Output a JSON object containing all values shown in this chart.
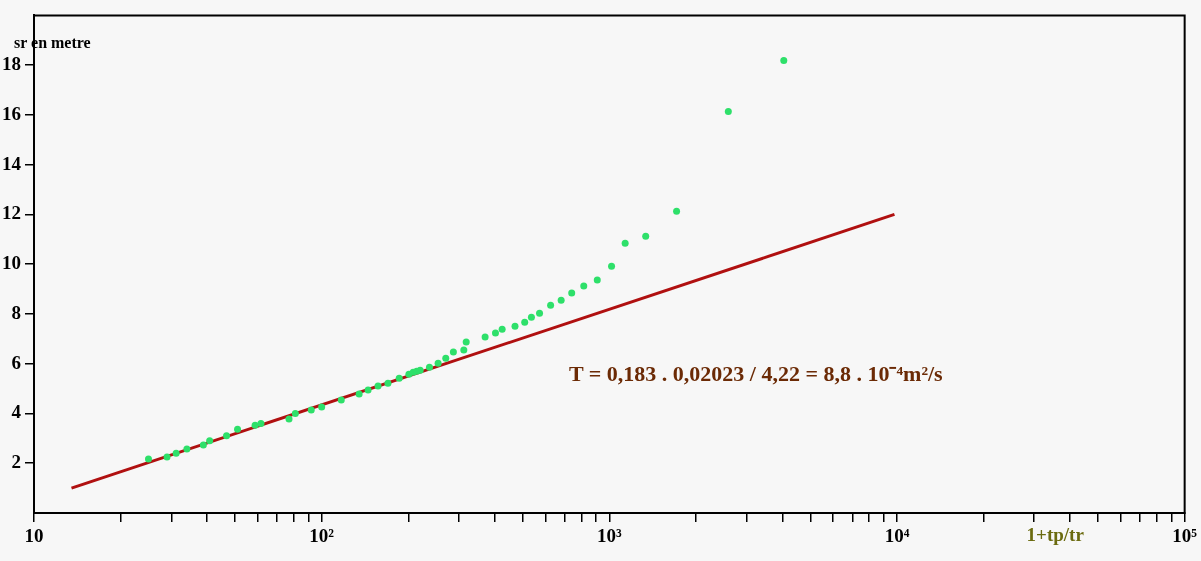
{
  "chart_data": {
    "type": "scatter",
    "xlabel": "1+tp/tr",
    "ylabel": "sr en metre",
    "annotations": [
      "T = 0,183 . 0,02023 / 4,22 = 8,8 . 10⁻⁴m²/s"
    ],
    "log": "x",
    "grid": false,
    "legend": false,
    "marker": "circle",
    "xlim": [
      10,
      100000
    ],
    "xticks": [
      10,
      {
        "value": 20,
        "label": null
      },
      {
        "value": 30,
        "label": null
      },
      {
        "value": 40,
        "label": null
      },
      {
        "value": 50,
        "label": null
      },
      {
        "value": 60,
        "label": null
      },
      {
        "value": 70,
        "label": null
      },
      {
        "value": 80,
        "label": null
      },
      {
        "value": 90,
        "label": null
      },
      {
        "value": 100,
        "label": "10²"
      },
      {
        "value": 200,
        "label": null
      },
      {
        "value": 300,
        "label": null
      },
      {
        "value": 400,
        "label": null
      },
      {
        "value": 500,
        "label": null
      },
      {
        "value": 600,
        "label": null
      },
      {
        "value": 700,
        "label": null
      },
      {
        "value": 800,
        "label": null
      },
      {
        "value": 900,
        "label": null
      },
      {
        "value": 1000,
        "label": "10³"
      },
      {
        "value": 2000,
        "label": null
      },
      {
        "value": 3000,
        "label": null
      },
      {
        "value": 4000,
        "label": null
      },
      {
        "value": 5000,
        "label": null
      },
      {
        "value": 6000,
        "label": null
      },
      {
        "value": 7000,
        "label": null
      },
      {
        "value": 8000,
        "label": null
      },
      {
        "value": 9000,
        "label": null
      },
      {
        "value": 10000,
        "label": "10⁴"
      },
      {
        "value": 20000,
        "label": null
      },
      {
        "value": 30000,
        "label": null
      },
      {
        "value": 40000,
        "label": null
      },
      {
        "value": 50000,
        "label": null
      },
      {
        "value": 60000,
        "label": null
      },
      {
        "value": 70000,
        "label": null
      },
      {
        "value": 80000,
        "label": null
      },
      {
        "value": 90000,
        "label": null
      },
      {
        "value": 100000,
        "label": "10⁵"
      }
    ],
    "ylim": [
      0,
      20
    ],
    "yticks": [
      2,
      4,
      6,
      8,
      10,
      12,
      14,
      16,
      18
    ],
    "series": [
      {
        "color": "#2ee06a",
        "x": [
          25,
          29,
          31.2,
          34,
          38.8,
          40.8,
          46.7,
          51,
          58.7,
          61.5,
          77,
          81,
          92,
          100,
          117,
          135,
          145,
          157,
          170,
          186,
          201,
          208,
          214,
          220,
          237,
          254,
          270,
          287,
          312,
          318,
          370,
          402,
          424,
          470,
          508,
          536,
          572,
          625,
          680,
          740,
          815,
          908,
          1018,
          1135,
          1338,
          1713,
          2592,
          4041
        ],
        "values": [
          2.17,
          2.25,
          2.4,
          2.57,
          2.73,
          2.9,
          3.1,
          3.37,
          3.53,
          3.6,
          3.78,
          4.0,
          4.14,
          4.26,
          4.54,
          4.78,
          4.94,
          5.1,
          5.22,
          5.42,
          5.58,
          5.66,
          5.7,
          5.74,
          5.86,
          6.02,
          6.22,
          6.47,
          6.55,
          6.87,
          7.07,
          7.23,
          7.39,
          7.51,
          7.67,
          7.87,
          8.03,
          8.35,
          8.55,
          8.84,
          9.12,
          9.36,
          9.92,
          10.84,
          11.12,
          12.13,
          16.14,
          18.19
        ]
      },
      {
        "type": "line",
        "marker": "none",
        "color": "#b01010",
        "x": [
          13.5,
          9800
        ],
        "values": [
          1.0,
          12.0
        ]
      }
    ]
  }
}
